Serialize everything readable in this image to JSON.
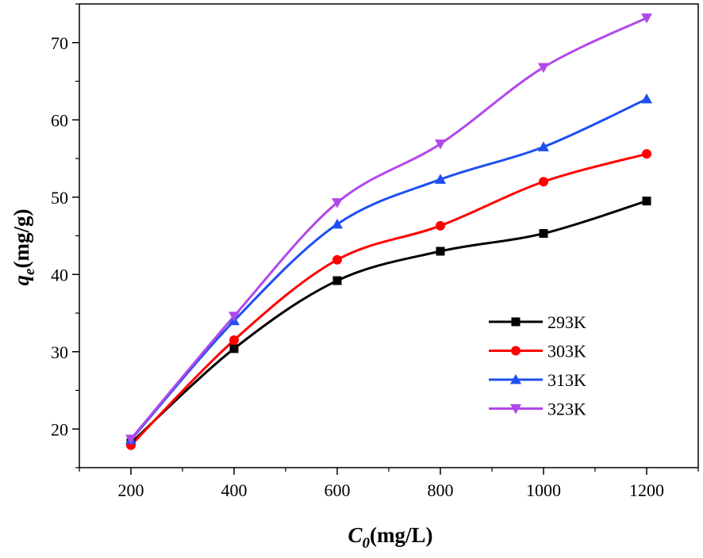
{
  "chart_data": {
    "type": "line",
    "title": "",
    "xlabel": {
      "main": "C",
      "sub": "0",
      "unit": "(mg/L)"
    },
    "ylabel": {
      "main": "q",
      "sub": "e",
      "unit": "(mg/g)"
    },
    "xlim": [
      100,
      1300
    ],
    "ylim": [
      15,
      75
    ],
    "xticks": [
      200,
      400,
      600,
      800,
      1000,
      1200
    ],
    "yticks": [
      20,
      30,
      40,
      50,
      60,
      70
    ],
    "grid": false,
    "legend_position": "lower-right",
    "x": [
      200,
      400,
      600,
      800,
      1000,
      1200
    ],
    "series": [
      {
        "name": "293K",
        "color": "#000000",
        "marker": "square",
        "values": [
          18.2,
          30.4,
          39.2,
          43.0,
          45.3,
          49.5
        ]
      },
      {
        "name": "303K",
        "color": "#ff0000",
        "marker": "circle",
        "values": [
          17.9,
          31.5,
          41.9,
          46.3,
          52.0,
          55.6
        ]
      },
      {
        "name": "313K",
        "color": "#1f4ff0",
        "marker": "triangle-up",
        "values": [
          18.6,
          34.0,
          46.5,
          52.3,
          56.5,
          62.7
        ]
      },
      {
        "name": "323K",
        "color": "#b148ea",
        "marker": "triangle-down",
        "values": [
          18.7,
          34.6,
          49.3,
          56.9,
          66.8,
          73.2
        ]
      }
    ]
  }
}
